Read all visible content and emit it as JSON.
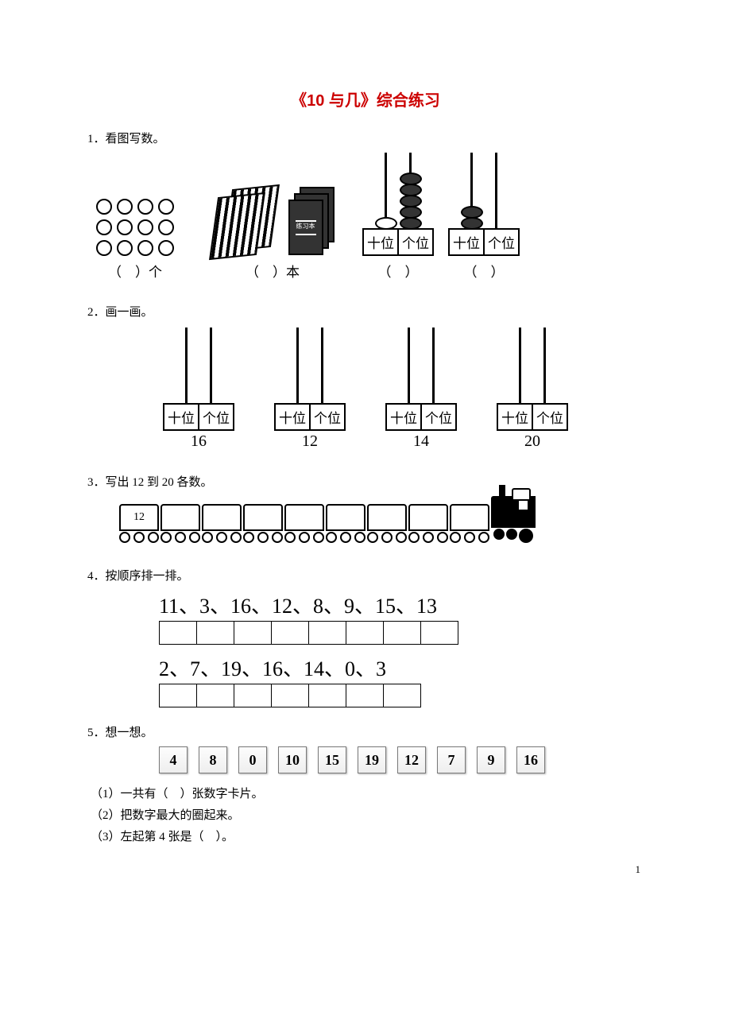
{
  "title": "《10 与几》综合练习",
  "q1": {
    "prompt": "1．看图写数。",
    "items": [
      {
        "caption_l": "（",
        "caption_r": "）个"
      },
      {
        "caption_l": "（",
        "caption_r": "）本"
      },
      {
        "caption_l": "（",
        "caption_r": "）"
      },
      {
        "caption_l": "（",
        "caption_r": "）"
      }
    ],
    "place_tens": "十位",
    "place_ones": "个位",
    "notebook_label": "练习本"
  },
  "q2": {
    "prompt": "2．画一画。",
    "numbers": [
      "16",
      "12",
      "14",
      "20"
    ],
    "place_tens": "十位",
    "place_ones": "个位"
  },
  "q3": {
    "prompt": "3．写出 12 到 20 各数。",
    "first_car": "12",
    "car_count": 9
  },
  "q4": {
    "prompt": "4．按顺序排一排。",
    "seq1": "11、3、16、12、8、9、15、13",
    "boxes1": 8,
    "seq2": "2、7、19、16、14、0、3",
    "boxes2": 7
  },
  "q5": {
    "prompt": "5．想一想。",
    "cards": [
      "4",
      "8",
      "0",
      "10",
      "15",
      "19",
      "12",
      "7",
      "9",
      "16"
    ],
    "sub1": "（1）一共有（　）张数字卡片。",
    "sub2": "（2）把数字最大的圈起来。",
    "sub3": "（3）左起第 4 张是（　）。"
  },
  "page_number": "1"
}
